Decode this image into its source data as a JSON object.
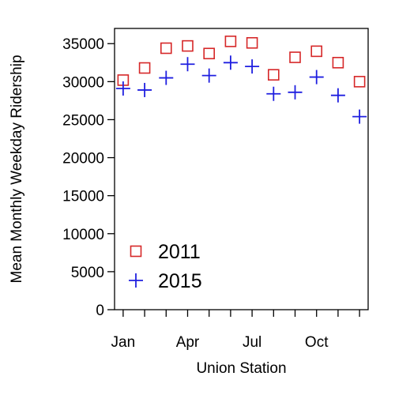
{
  "chart_data": {
    "type": "scatter",
    "title": "",
    "xlabel": "Union Station",
    "ylabel": "Mean Monthly Weekday Ridership",
    "ylim": [
      0,
      37000
    ],
    "yticks": [
      0,
      5000,
      10000,
      15000,
      20000,
      25000,
      30000,
      35000
    ],
    "xlim": [
      0.6,
      12.4
    ],
    "xticks": [
      1,
      2,
      3,
      4,
      5,
      6,
      7,
      8,
      9,
      10,
      11,
      12
    ],
    "xtick_labels": [
      {
        "x": 1,
        "label": "Jan"
      },
      {
        "x": 4,
        "label": "Apr"
      },
      {
        "x": 7,
        "label": "Jul"
      },
      {
        "x": 10,
        "label": "Oct"
      }
    ],
    "grid": false,
    "legend_position": "bottom-left",
    "series": [
      {
        "name": "2011",
        "marker": "square",
        "color": "#d62728",
        "x": [
          1,
          2,
          3,
          4,
          5,
          6,
          7,
          8,
          9,
          10,
          11,
          12
        ],
        "values": [
          30200,
          31800,
          34400,
          34700,
          33700,
          35300,
          35100,
          30900,
          33200,
          34000,
          32500,
          30000
        ]
      },
      {
        "name": "2015",
        "marker": "plus",
        "color": "#1f1fe0",
        "x": [
          1,
          2,
          3,
          4,
          5,
          6,
          7,
          8,
          9,
          10,
          11,
          12
        ],
        "values": [
          29100,
          28900,
          30500,
          32300,
          30800,
          32500,
          32000,
          28400,
          28600,
          30600,
          28200,
          25400
        ]
      }
    ]
  }
}
